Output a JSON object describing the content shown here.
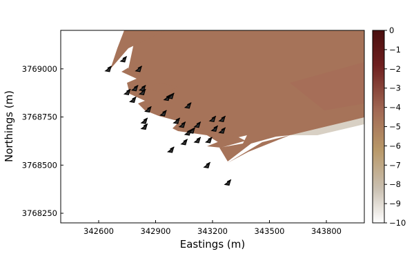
{
  "chart_data": {
    "type": "heatmap",
    "title": "",
    "xlabel": "Eastings (m)",
    "ylabel": "Northings (m)",
    "xlim": [
      342400,
      344000
    ],
    "ylim": [
      3768200,
      3769200
    ],
    "x_ticks": [
      342600,
      342900,
      343200,
      343500,
      343800
    ],
    "y_ticks": [
      3768250,
      3768500,
      3768750,
      3769000
    ],
    "grid": false,
    "legend": "none",
    "colorbar": {
      "range": [
        -10,
        0
      ],
      "ticks": [
        0,
        -1,
        -2,
        -3,
        -4,
        -5,
        -6,
        -7,
        -8,
        -9,
        -10
      ],
      "placement": "right",
      "colors": [
        "#ffffff",
        "#c9bfb0",
        "#b89868",
        "#a26a55",
        "#6e1f1f",
        "#4a0f0f"
      ]
    },
    "field_value_typical": -4.6,
    "turbines": [
      {
        "x": 342650,
        "y": 3769000
      },
      {
        "x": 342730,
        "y": 3769050
      },
      {
        "x": 342810,
        "y": 3769000
      },
      {
        "x": 342750,
        "y": 3768880
      },
      {
        "x": 342790,
        "y": 3768900
      },
      {
        "x": 342830,
        "y": 3768900
      },
      {
        "x": 342780,
        "y": 3768840
      },
      {
        "x": 342830,
        "y": 3768880
      },
      {
        "x": 342960,
        "y": 3768850
      },
      {
        "x": 342980,
        "y": 3768860
      },
      {
        "x": 343070,
        "y": 3768810
      },
      {
        "x": 342860,
        "y": 3768790
      },
      {
        "x": 342940,
        "y": 3768770
      },
      {
        "x": 342840,
        "y": 3768730
      },
      {
        "x": 342840,
        "y": 3768700
      },
      {
        "x": 343010,
        "y": 3768730
      },
      {
        "x": 343040,
        "y": 3768710
      },
      {
        "x": 343090,
        "y": 3768680
      },
      {
        "x": 343070,
        "y": 3768670
      },
      {
        "x": 343120,
        "y": 3768710
      },
      {
        "x": 343200,
        "y": 3768740
      },
      {
        "x": 343250,
        "y": 3768740
      },
      {
        "x": 343210,
        "y": 3768690
      },
      {
        "x": 343250,
        "y": 3768680
      },
      {
        "x": 343050,
        "y": 3768620
      },
      {
        "x": 343120,
        "y": 3768630
      },
      {
        "x": 343180,
        "y": 3768630
      },
      {
        "x": 342980,
        "y": 3768580
      },
      {
        "x": 343170,
        "y": 3768500
      },
      {
        "x": 343280,
        "y": 3768410
      }
    ]
  }
}
